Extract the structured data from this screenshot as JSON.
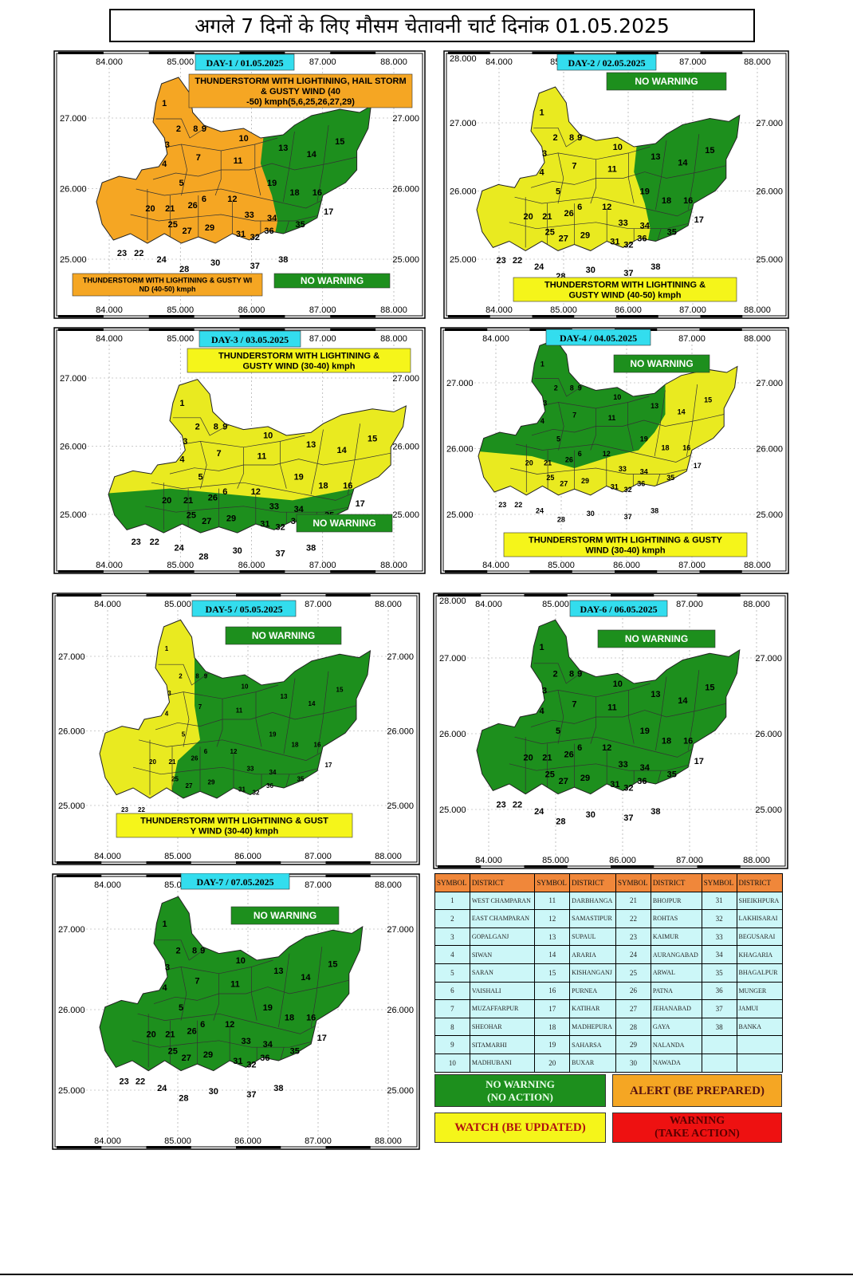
{
  "title": "अगले 7 दिनों के लिए मौसम चेतावनी चार्ट  दिनांक  01.05.2025",
  "colors": {
    "green": "#1d8f1d",
    "yellow": "#e5e619",
    "orange": "#f5a623",
    "red": "#ee1111",
    "day_label_bg": "#33ddee"
  },
  "axis_labels": {
    "lon": [
      "84.000",
      "85.000",
      "86.000",
      "87.000",
      "88.000"
    ],
    "lat": [
      "27.000",
      "26.000",
      "25.000"
    ],
    "lat_extra": "28.000"
  },
  "panels": [
    {
      "day_label": "DAY-1 / 01.05.2025",
      "warnings": [
        {
          "text": "THUNDERSTORM WITH LIGHTINING, HAIL STORM  & GUSTY WIND (40-50) kmph(5,6,25,26,27,29)",
          "color": "orange"
        },
        {
          "text": "THUNDERSTORM WITH LIGHTINING  & GUSTY WIND (40-50) kmph",
          "color": "orange"
        },
        {
          "text": "NO WARNING",
          "color": "green"
        }
      ],
      "zones": {
        "west": "orange",
        "east": "green"
      }
    },
    {
      "day_label": "DAY-2 / 02.05.2025",
      "warnings": [
        {
          "text": "NO WARNING",
          "color": "green"
        },
        {
          "text": "THUNDERSTORM WITH LIGHTINING  & GUSTY WIND (40-50) kmph",
          "color": "yellow"
        }
      ],
      "zones": {
        "west": "yellow",
        "east": "green"
      }
    },
    {
      "day_label": "DAY-3 / 03.05.2025",
      "warnings": [
        {
          "text": "THUNDERSTORM WITH LIGHTINING  & GUSTY WIND (30-40) kmph",
          "color": "yellow"
        },
        {
          "text": "NO WARNING",
          "color": "green"
        }
      ],
      "zones": {
        "north": "yellow",
        "south": "green"
      }
    },
    {
      "day_label": "DAY-4 / 04.05.2025",
      "warnings": [
        {
          "text": "NO WARNING",
          "color": "green"
        },
        {
          "text": "THUNDERSTORM WITH LIGHTINING  & GUSTY WIND (30-40) kmph",
          "color": "yellow"
        }
      ],
      "zones": {
        "northwest": "green",
        "rest": "yellow"
      }
    },
    {
      "day_label": "DAY-5 / 05.05.2025",
      "warnings": [
        {
          "text": "NO WARNING",
          "color": "green"
        },
        {
          "text": "THUNDERSTORM WITH LIGHTINING  & GUSTY WIND (30-40) kmph",
          "color": "yellow"
        }
      ],
      "zones": {
        "west": "yellow",
        "east": "green"
      }
    },
    {
      "day_label": "DAY-6 / 06.05.2025",
      "warnings": [
        {
          "text": "NO WARNING",
          "color": "green"
        }
      ],
      "zones": {
        "all": "green"
      }
    },
    {
      "day_label": "DAY-7 / 07.05.2025",
      "warnings": [
        {
          "text": "NO WARNING",
          "color": "green"
        }
      ],
      "zones": {
        "all": "green"
      }
    }
  ],
  "district_table": {
    "headers": [
      "SYMBOL",
      "DISTRICT",
      "SYMBOL",
      "DISTRICT",
      "SYMBOL",
      "DISTRICT",
      "SYMBOL",
      "DISTRICT"
    ],
    "rows": [
      [
        "1",
        "WEST CHAMPARAN",
        "11",
        "DARBHANGA",
        "21",
        "BHOJPUR",
        "31",
        "SHEIKHPURA"
      ],
      [
        "2",
        "EAST CHAMPARAN",
        "12",
        "SAMASTIPUR",
        "22",
        "ROHTAS",
        "32",
        "LAKHISARAI"
      ],
      [
        "3",
        "GOPALGANJ",
        "13",
        "SUPAUL",
        "23",
        "KAIMUR",
        "33",
        "BEGUSARAI"
      ],
      [
        "4",
        "SIWAN",
        "14",
        "ARARIA",
        "24",
        "AURANGABAD",
        "34",
        "KHAGARIA"
      ],
      [
        "5",
        "SARAN",
        "15",
        "KISHANGANJ",
        "25",
        "ARWAL",
        "35",
        "BHAGALPUR"
      ],
      [
        "6",
        "VAISHALI",
        "16",
        "PURNEA",
        "26",
        "PATNA",
        "36",
        "MUNGER"
      ],
      [
        "7",
        "MUZAFFARPUR",
        "17",
        "KATIHAR",
        "27",
        "JEHANABAD",
        "37",
        "JAMUI"
      ],
      [
        "8",
        "SHEOHAR",
        "18",
        "MADHEPURA",
        "28",
        "GAYA",
        "38",
        "BANKA"
      ],
      [
        "9",
        "SITAMARHI",
        "19",
        "SAHARSA",
        "29",
        "NALANDA",
        "",
        ""
      ],
      [
        "10",
        "MADHUBANI",
        "20",
        "BUXAR",
        "30",
        "NAWADA",
        "",
        ""
      ]
    ]
  },
  "color_key": [
    {
      "label": "NO WARNING\n(NO ACTION)",
      "color": "green"
    },
    {
      "label": "ALERT (BE PREPARED)",
      "color": "orange"
    },
    {
      "label": "WATCH (BE UPDATED)",
      "color": "yellow"
    },
    {
      "label": "WARNING\n(TAKE ACTION)",
      "color": "red"
    }
  ]
}
